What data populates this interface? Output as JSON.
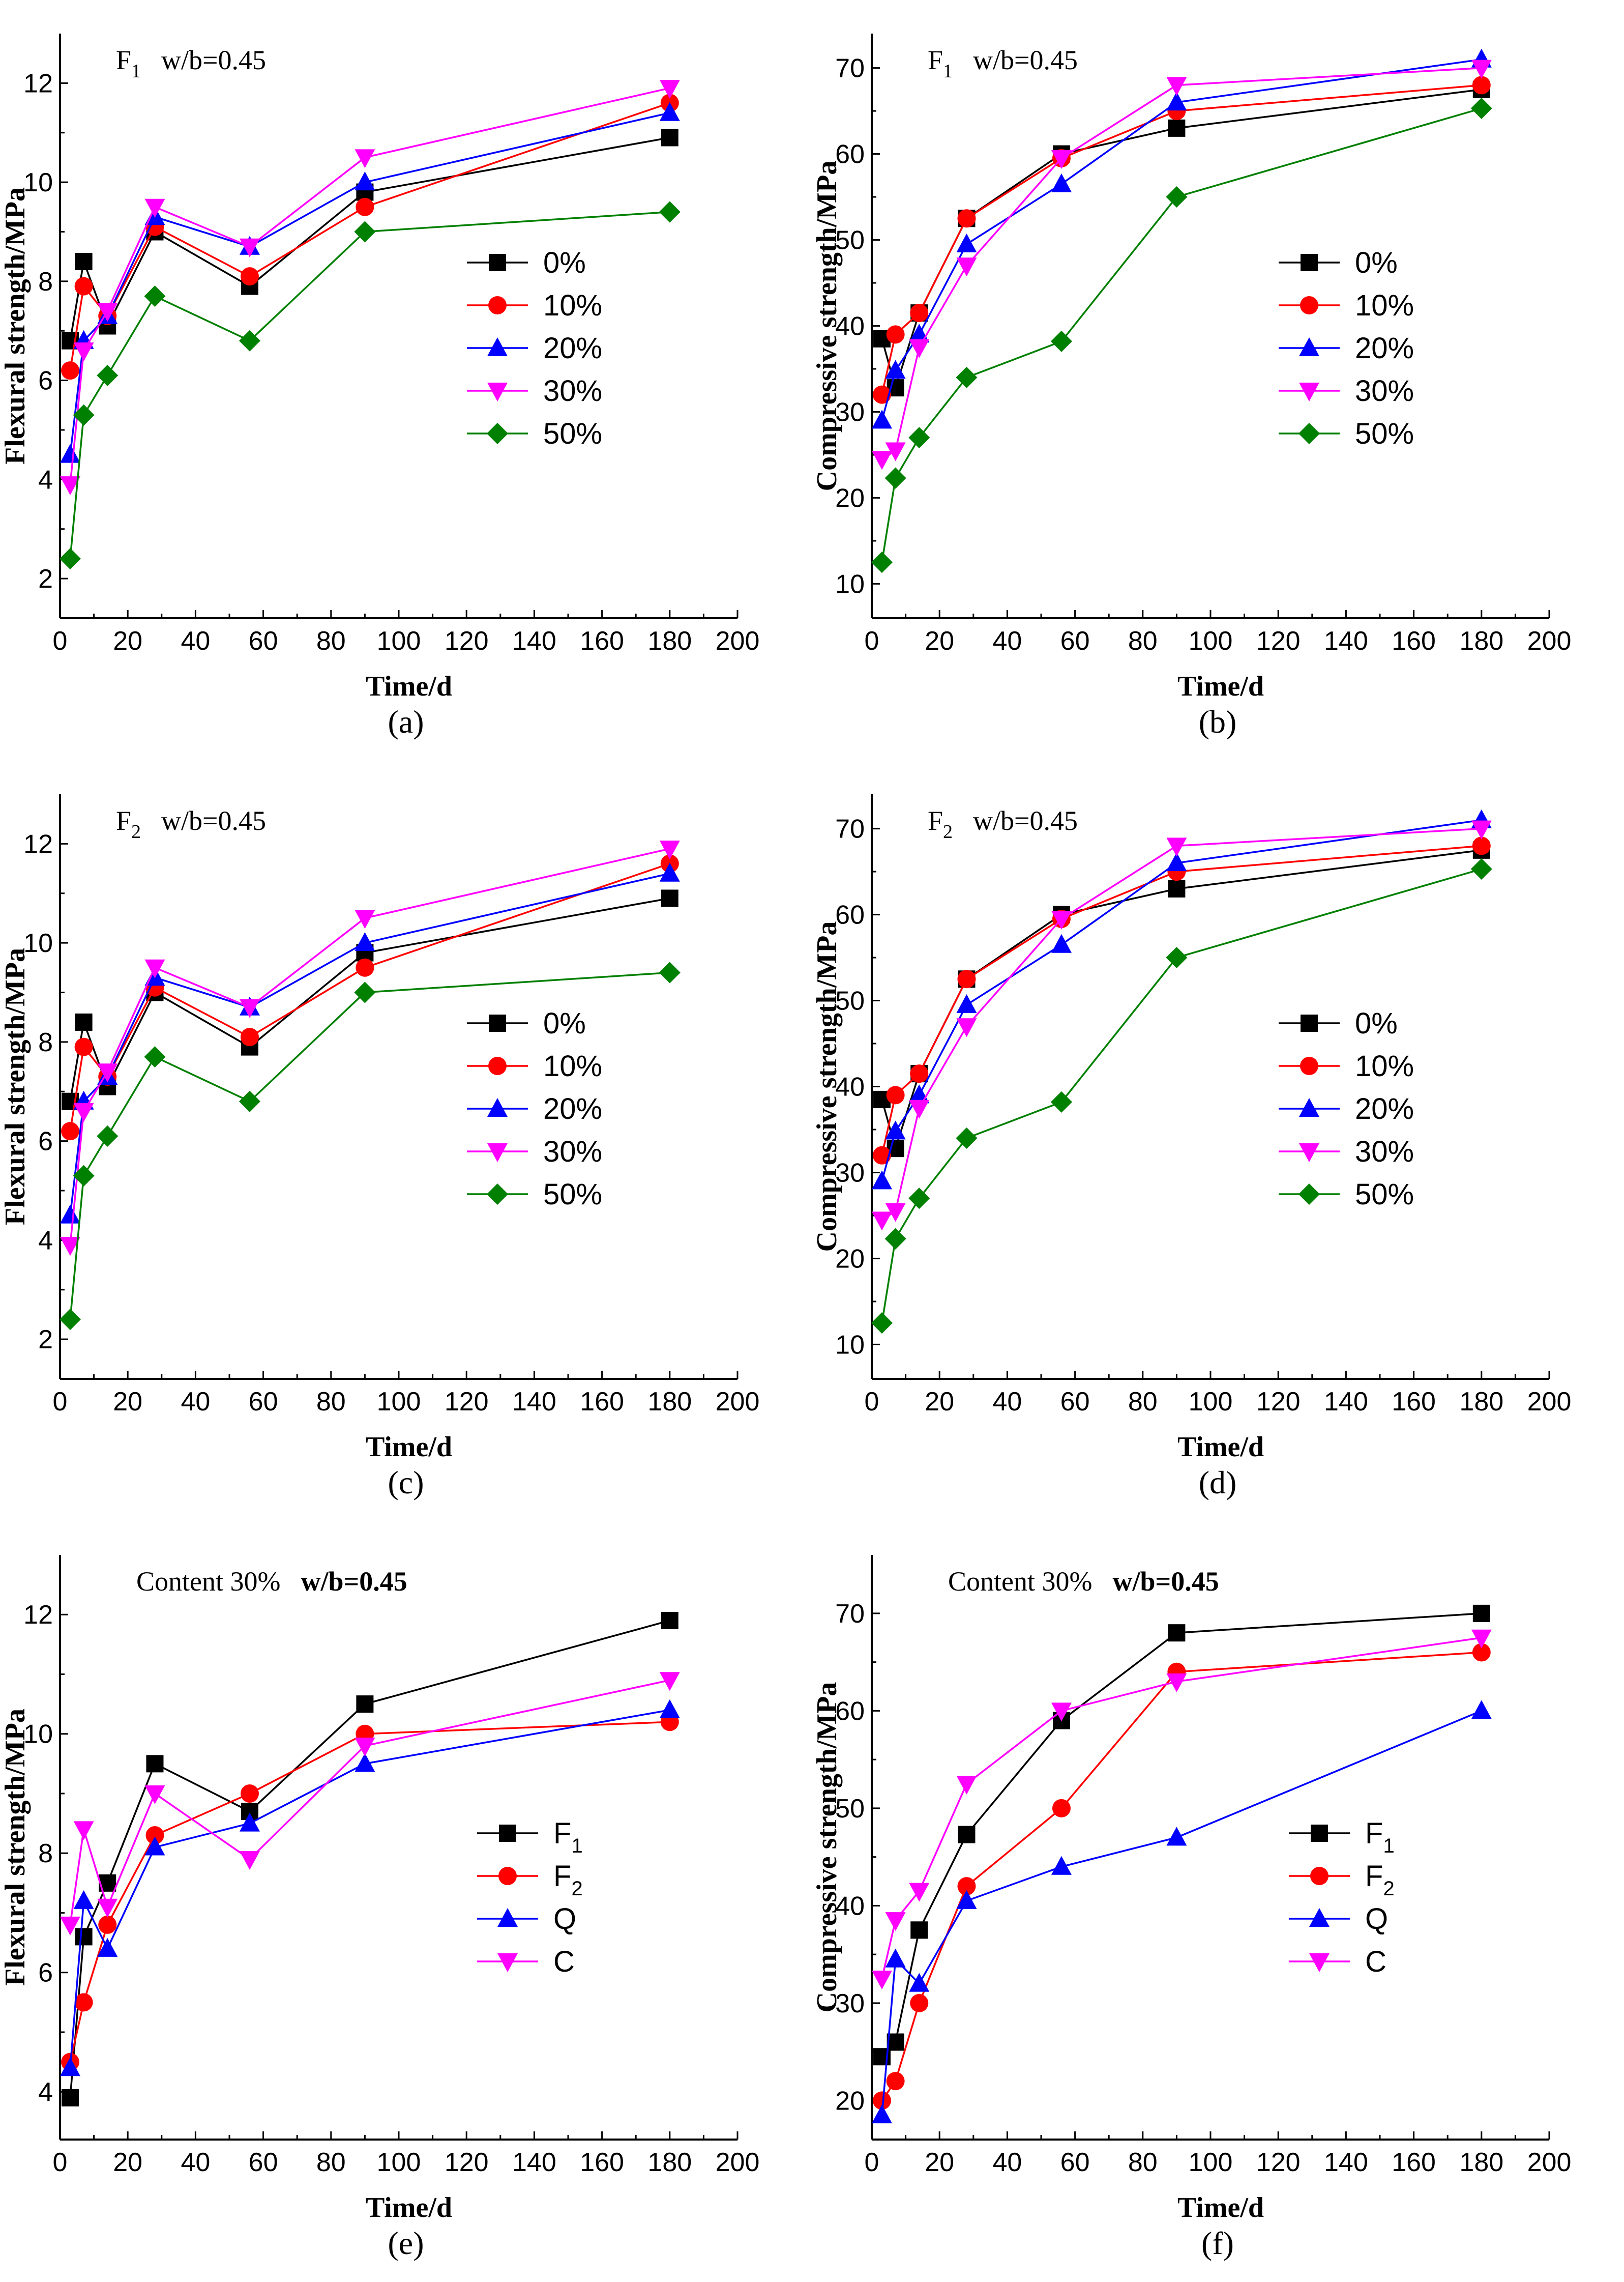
{
  "colors": {
    "black": "#000000",
    "red": "#ff0000",
    "blue": "#0000ff",
    "magenta": "#ff00ff",
    "green": "#008000"
  },
  "chart_data": [
    {
      "id": "a",
      "panel_label": "(a)",
      "type": "line",
      "title_main": "F",
      "title_sub": "1",
      "title_rest": "w/b=0.45",
      "xlabel": "Time/d",
      "ylabel": "Flexural strength/MPa",
      "xlim": [
        0,
        200
      ],
      "ylim": [
        1.2,
        13
      ],
      "xticks": [
        0,
        20,
        40,
        60,
        80,
        100,
        120,
        140,
        160,
        180,
        200
      ],
      "yticks": [
        2,
        4,
        6,
        8,
        10,
        12
      ],
      "legend_position": "right-middle",
      "series": [
        {
          "name": "0%",
          "label_main": "0%",
          "label_sub": "",
          "marker": "square",
          "color": "#000000",
          "x": [
            3,
            7,
            14,
            28,
            56,
            90,
            180
          ],
          "values": [
            6.8,
            8.4,
            7.1,
            9.0,
            7.9,
            9.8,
            10.9
          ]
        },
        {
          "name": "10%",
          "label_main": "10%",
          "label_sub": "",
          "marker": "circle",
          "color": "#ff0000",
          "x": [
            3,
            7,
            14,
            28,
            56,
            90,
            180
          ],
          "values": [
            6.2,
            7.9,
            7.3,
            9.1,
            8.1,
            9.5,
            11.6
          ]
        },
        {
          "name": "20%",
          "label_main": "20%",
          "label_sub": "",
          "marker": "triangle-up",
          "color": "#0000ff",
          "x": [
            3,
            7,
            14,
            28,
            56,
            90,
            180
          ],
          "values": [
            4.5,
            6.8,
            7.3,
            9.3,
            8.7,
            10.0,
            11.4
          ]
        },
        {
          "name": "30%",
          "label_main": "30%",
          "label_sub": "",
          "marker": "triangle-down",
          "color": "#ff00ff",
          "x": [
            3,
            7,
            14,
            28,
            56,
            90,
            180
          ],
          "values": [
            3.9,
            6.6,
            7.4,
            9.5,
            8.7,
            10.5,
            11.9
          ]
        },
        {
          "name": "50%",
          "label_main": "50%",
          "label_sub": "",
          "marker": "diamond",
          "color": "#008000",
          "x": [
            3,
            7,
            14,
            28,
            56,
            90,
            180
          ],
          "values": [
            2.4,
            5.3,
            6.1,
            7.7,
            6.8,
            9.0,
            9.4
          ]
        }
      ]
    },
    {
      "id": "b",
      "panel_label": "(b)",
      "type": "line",
      "title_main": "F",
      "title_sub": "1",
      "title_rest": "w/b=0.45",
      "xlabel": "Time/d",
      "ylabel": "Compressive strength/MPa",
      "xlim": [
        0,
        200
      ],
      "ylim": [
        6,
        74
      ],
      "xticks": [
        0,
        20,
        40,
        60,
        80,
        100,
        120,
        140,
        160,
        180,
        200
      ],
      "yticks": [
        10,
        20,
        30,
        40,
        50,
        60,
        70
      ],
      "legend_position": "right-middle",
      "series": [
        {
          "name": "0%",
          "label_main": "0%",
          "label_sub": "",
          "marker": "square",
          "color": "#000000",
          "x": [
            3,
            7,
            14,
            28,
            56,
            90,
            180
          ],
          "values": [
            38.5,
            32.8,
            41.5,
            52.5,
            60.0,
            63.0,
            67.5
          ]
        },
        {
          "name": "10%",
          "label_main": "10%",
          "label_sub": "",
          "marker": "circle",
          "color": "#ff0000",
          "x": [
            3,
            7,
            14,
            28,
            56,
            90,
            180
          ],
          "values": [
            32.0,
            39.0,
            41.5,
            52.5,
            59.5,
            65.0,
            68.0
          ]
        },
        {
          "name": "20%",
          "label_main": "20%",
          "label_sub": "",
          "marker": "triangle-up",
          "color": "#0000ff",
          "x": [
            3,
            7,
            14,
            28,
            56,
            90,
            180
          ],
          "values": [
            29.0,
            34.8,
            39.0,
            49.5,
            56.5,
            66.0,
            71.0
          ]
        },
        {
          "name": "30%",
          "label_main": "30%",
          "label_sub": "",
          "marker": "triangle-down",
          "color": "#ff00ff",
          "x": [
            3,
            7,
            14,
            28,
            56,
            90,
            180
          ],
          "values": [
            24.5,
            25.5,
            37.5,
            47.0,
            59.5,
            68.0,
            70.0
          ]
        },
        {
          "name": "50%",
          "label_main": "50%",
          "label_sub": "",
          "marker": "diamond",
          "color": "#008000",
          "x": [
            3,
            7,
            14,
            28,
            56,
            90,
            180
          ],
          "values": [
            12.5,
            22.3,
            27.0,
            34.0,
            38.2,
            55.0,
            65.3
          ]
        }
      ]
    },
    {
      "id": "c",
      "panel_label": "(c)",
      "type": "line",
      "title_main": "F",
      "title_sub": "2",
      "title_rest": "w/b=0.45",
      "xlabel": "Time/d",
      "ylabel": "Flexural strength/MPa",
      "xlim": [
        0,
        200
      ],
      "ylim": [
        1.2,
        13
      ],
      "xticks": [
        0,
        20,
        40,
        60,
        80,
        100,
        120,
        140,
        160,
        180,
        200
      ],
      "yticks": [
        2,
        4,
        6,
        8,
        10,
        12
      ],
      "legend_position": "right-middle",
      "series": [
        {
          "name": "0%",
          "label_main": "0%",
          "label_sub": "",
          "marker": "square",
          "color": "#000000",
          "x": [
            3,
            7,
            14,
            28,
            56,
            90,
            180
          ],
          "values": [
            6.8,
            8.4,
            7.1,
            9.0,
            7.9,
            9.8,
            10.9
          ]
        },
        {
          "name": "10%",
          "label_main": "10%",
          "label_sub": "",
          "marker": "circle",
          "color": "#ff0000",
          "x": [
            3,
            7,
            14,
            28,
            56,
            90,
            180
          ],
          "values": [
            6.2,
            7.9,
            7.3,
            9.1,
            8.1,
            9.5,
            11.6
          ]
        },
        {
          "name": "20%",
          "label_main": "20%",
          "label_sub": "",
          "marker": "triangle-up",
          "color": "#0000ff",
          "x": [
            3,
            7,
            14,
            28,
            56,
            90,
            180
          ],
          "values": [
            4.5,
            6.8,
            7.3,
            9.3,
            8.7,
            10.0,
            11.4
          ]
        },
        {
          "name": "30%",
          "label_main": "30%",
          "label_sub": "",
          "marker": "triangle-down",
          "color": "#ff00ff",
          "x": [
            3,
            7,
            14,
            28,
            56,
            90,
            180
          ],
          "values": [
            3.9,
            6.6,
            7.4,
            9.5,
            8.7,
            10.5,
            11.9
          ]
        },
        {
          "name": "50%",
          "label_main": "50%",
          "label_sub": "",
          "marker": "diamond",
          "color": "#008000",
          "x": [
            3,
            7,
            14,
            28,
            56,
            90,
            180
          ],
          "values": [
            2.4,
            5.3,
            6.1,
            7.7,
            6.8,
            9.0,
            9.4
          ]
        }
      ]
    },
    {
      "id": "d",
      "panel_label": "(d)",
      "type": "line",
      "title_main": "F",
      "title_sub": "2",
      "title_rest": "w/b=0.45",
      "xlabel": "Time/d",
      "ylabel": "Compressive strength/MPa",
      "xlim": [
        0,
        200
      ],
      "ylim": [
        6,
        74
      ],
      "xticks": [
        0,
        20,
        40,
        60,
        80,
        100,
        120,
        140,
        160,
        180,
        200
      ],
      "yticks": [
        10,
        20,
        30,
        40,
        50,
        60,
        70
      ],
      "legend_position": "right-middle",
      "series": [
        {
          "name": "0%",
          "label_main": "0%",
          "label_sub": "",
          "marker": "square",
          "color": "#000000",
          "x": [
            3,
            7,
            14,
            28,
            56,
            90,
            180
          ],
          "values": [
            38.5,
            32.8,
            41.5,
            52.5,
            60.0,
            63.0,
            67.5
          ]
        },
        {
          "name": "10%",
          "label_main": "10%",
          "label_sub": "",
          "marker": "circle",
          "color": "#ff0000",
          "x": [
            3,
            7,
            14,
            28,
            56,
            90,
            180
          ],
          "values": [
            32.0,
            39.0,
            41.5,
            52.5,
            59.5,
            65.0,
            68.0
          ]
        },
        {
          "name": "20%",
          "label_main": "20%",
          "label_sub": "",
          "marker": "triangle-up",
          "color": "#0000ff",
          "x": [
            3,
            7,
            14,
            28,
            56,
            90,
            180
          ],
          "values": [
            29.0,
            34.8,
            39.0,
            49.5,
            56.5,
            66.0,
            71.0
          ]
        },
        {
          "name": "30%",
          "label_main": "30%",
          "label_sub": "",
          "marker": "triangle-down",
          "color": "#ff00ff",
          "x": [
            3,
            7,
            14,
            28,
            56,
            90,
            180
          ],
          "values": [
            24.5,
            25.5,
            37.5,
            47.0,
            59.5,
            68.0,
            70.0
          ]
        },
        {
          "name": "50%",
          "label_main": "50%",
          "label_sub": "",
          "marker": "diamond",
          "color": "#008000",
          "x": [
            3,
            7,
            14,
            28,
            56,
            90,
            180
          ],
          "values": [
            12.5,
            22.3,
            27.0,
            34.0,
            38.2,
            55.0,
            65.3
          ]
        }
      ]
    },
    {
      "id": "e",
      "panel_label": "(e)",
      "type": "line",
      "title_main": "Content 30%",
      "title_sub": "",
      "title_rest": "w/b=0.45",
      "xlabel": "Time/d",
      "ylabel": "Flexural strength/MPa",
      "xlim": [
        0,
        200
      ],
      "ylim": [
        3.2,
        13
      ],
      "xticks": [
        0,
        20,
        40,
        60,
        80,
        100,
        120,
        140,
        160,
        180,
        200
      ],
      "yticks": [
        4,
        6,
        8,
        10,
        12
      ],
      "legend_position": "bottom-right",
      "series": [
        {
          "name": "F1",
          "label_main": "F",
          "label_sub": "1",
          "marker": "square",
          "color": "#000000",
          "x": [
            3,
            7,
            14,
            28,
            56,
            90,
            180
          ],
          "values": [
            3.9,
            6.6,
            7.5,
            9.5,
            8.7,
            10.5,
            11.9
          ]
        },
        {
          "name": "F2",
          "label_main": "F",
          "label_sub": "2",
          "marker": "circle",
          "color": "#ff0000",
          "x": [
            3,
            7,
            14,
            28,
            56,
            90,
            180
          ],
          "values": [
            4.5,
            5.5,
            6.8,
            8.3,
            9.0,
            10.0,
            10.2
          ]
        },
        {
          "name": "Q",
          "label_main": "Q",
          "label_sub": "",
          "marker": "triangle-up",
          "color": "#0000ff",
          "x": [
            3,
            7,
            14,
            28,
            56,
            90,
            180
          ],
          "values": [
            4.4,
            7.2,
            6.4,
            8.1,
            8.5,
            9.5,
            10.4
          ]
        },
        {
          "name": "C",
          "label_main": "C",
          "label_sub": "",
          "marker": "triangle-down",
          "color": "#ff00ff",
          "x": [
            3,
            7,
            14,
            28,
            56,
            90,
            180
          ],
          "values": [
            6.8,
            8.4,
            7.1,
            9.0,
            7.9,
            9.8,
            10.9
          ]
        }
      ]
    },
    {
      "id": "f",
      "panel_label": "(f)",
      "type": "line",
      "title_main": "Content 30%",
      "title_sub": "",
      "title_rest": "w/b=0.45",
      "xlabel": "Time/d",
      "ylabel": "Compressive strength/MPa",
      "xlim": [
        0,
        200
      ],
      "ylim": [
        16,
        76
      ],
      "xticks": [
        0,
        20,
        40,
        60,
        80,
        100,
        120,
        140,
        160,
        180,
        200
      ],
      "yticks": [
        20,
        30,
        40,
        50,
        60,
        70
      ],
      "legend_position": "bottom-right",
      "series": [
        {
          "name": "F1",
          "label_main": "F",
          "label_sub": "1",
          "marker": "square",
          "color": "#000000",
          "x": [
            3,
            7,
            14,
            28,
            56,
            90,
            180
          ],
          "values": [
            24.5,
            26.0,
            37.5,
            47.3,
            59.0,
            68.0,
            70.0
          ]
        },
        {
          "name": "F2",
          "label_main": "F",
          "label_sub": "2",
          "marker": "circle",
          "color": "#ff0000",
          "x": [
            3,
            7,
            14,
            28,
            56,
            90,
            180
          ],
          "values": [
            20.0,
            22.0,
            30.0,
            42.0,
            50.0,
            64.0,
            66.0
          ]
        },
        {
          "name": "Q",
          "label_main": "Q",
          "label_sub": "",
          "marker": "triangle-up",
          "color": "#0000ff",
          "x": [
            3,
            7,
            14,
            28,
            56,
            90,
            180
          ],
          "values": [
            18.5,
            34.5,
            32.0,
            40.5,
            44.0,
            47.0,
            60.0
          ]
        },
        {
          "name": "C",
          "label_main": "C",
          "label_sub": "",
          "marker": "triangle-down",
          "color": "#ff00ff",
          "x": [
            3,
            7,
            14,
            28,
            56,
            90,
            180
          ],
          "values": [
            32.5,
            38.5,
            41.5,
            52.5,
            60.0,
            63.0,
            67.5
          ]
        }
      ]
    }
  ]
}
